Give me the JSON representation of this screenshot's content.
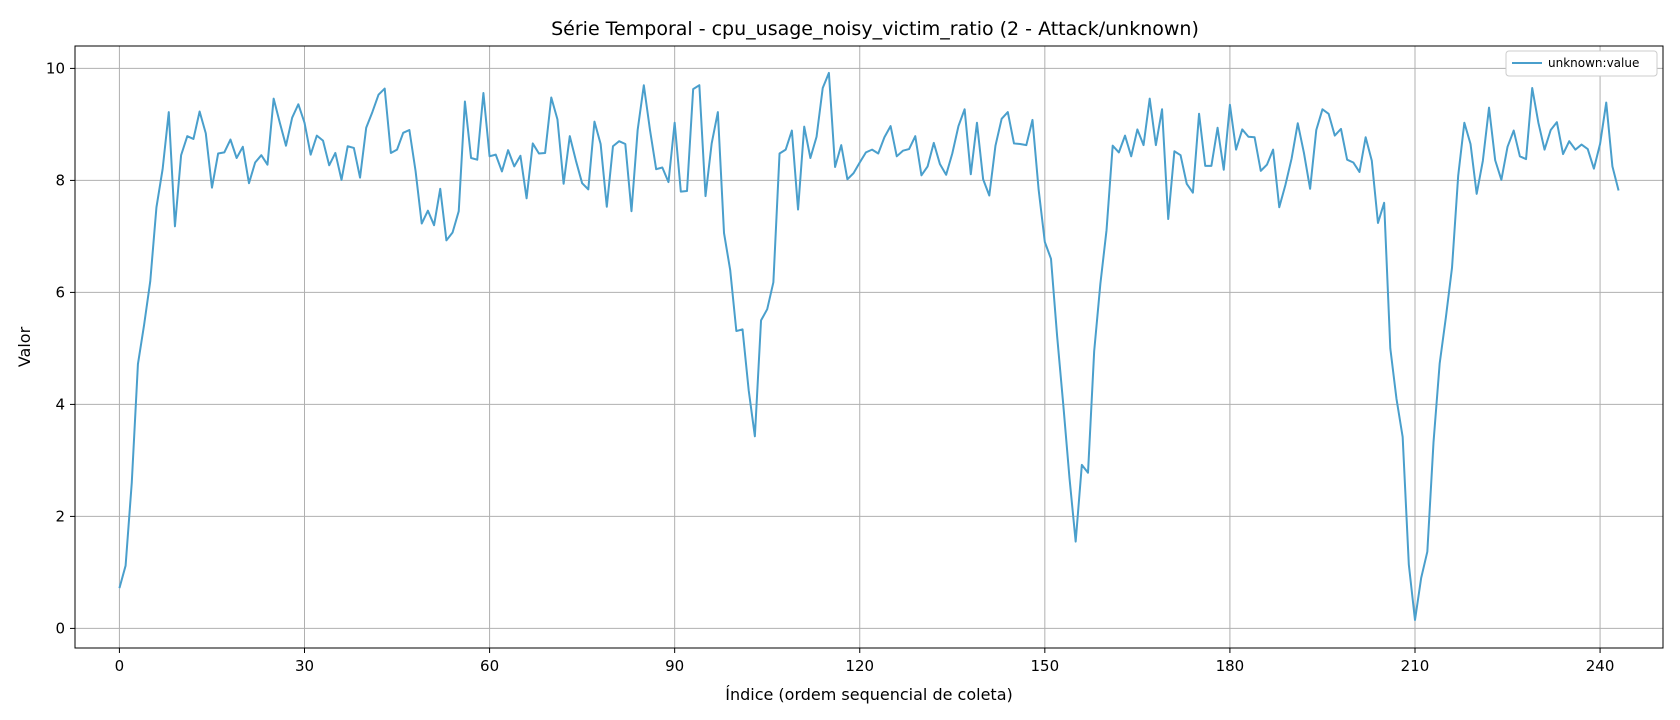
{
  "chart_data": {
    "type": "line",
    "title": "Série Temporal - cpu_usage_noisy_victim_ratio (2 - Attack/unknown)",
    "xlabel": "Índice (ordem sequencial de coleta)",
    "ylabel": "Valor",
    "xlim": [
      -7.2,
      250.2
    ],
    "ylim": [
      -0.35,
      10.4
    ],
    "xticks": [
      0,
      30,
      60,
      90,
      120,
      150,
      180,
      210,
      240
    ],
    "yticks": [
      0,
      2,
      4,
      6,
      8,
      10
    ],
    "grid": true,
    "legend_position": "top-right",
    "line_color": "#4a9fcc",
    "series": [
      {
        "name": "unknown:value",
        "x_start": 0,
        "values": [
          0.72,
          1.12,
          2.6,
          4.72,
          5.42,
          6.2,
          7.52,
          8.2,
          9.22,
          7.18,
          8.45,
          8.79,
          8.74,
          9.23,
          8.84,
          7.87,
          8.48,
          8.5,
          8.73,
          8.4,
          8.6,
          7.95,
          8.32,
          8.45,
          8.28,
          9.46,
          9.03,
          8.62,
          9.12,
          9.36,
          9.03,
          8.46,
          8.8,
          8.71,
          8.27,
          8.49,
          8.01,
          8.61,
          8.58,
          8.05,
          8.94,
          9.22,
          9.53,
          9.64,
          8.49,
          8.55,
          8.85,
          8.9,
          8.17,
          7.23,
          7.46,
          7.2,
          7.85,
          6.93,
          7.07,
          7.45,
          9.41,
          8.4,
          8.37,
          9.56,
          8.43,
          8.46,
          8.16,
          8.54,
          8.25,
          8.44,
          7.68,
          8.66,
          8.48,
          8.49,
          9.48,
          9.09,
          7.94,
          8.79,
          8.35,
          7.95,
          7.84,
          9.05,
          8.65,
          7.53,
          8.61,
          8.7,
          8.65,
          7.45,
          8.9,
          9.7,
          8.9,
          8.2,
          8.23,
          7.97,
          9.03,
          7.8,
          7.81,
          9.63,
          9.7,
          7.72,
          8.66,
          9.22,
          7.06,
          6.4,
          5.31,
          5.34,
          4.25,
          3.43,
          5.5,
          5.7,
          6.18,
          8.48,
          8.55,
          8.89,
          7.48,
          8.96,
          8.4,
          8.78,
          9.65,
          9.92,
          8.24,
          8.63,
          8.02,
          8.13,
          8.32,
          8.5,
          8.55,
          8.48,
          8.77,
          8.97,
          8.43,
          8.53,
          8.56,
          8.79,
          8.09,
          8.25,
          8.67,
          8.29,
          8.1,
          8.48,
          8.97,
          9.27,
          8.11,
          9.03,
          8.02,
          7.73,
          8.62,
          9.1,
          9.22,
          8.66,
          8.65,
          8.63,
          9.08,
          7.83,
          6.9,
          6.6,
          5.21,
          3.98,
          2.68,
          1.55,
          2.92,
          2.78,
          4.95,
          6.15,
          7.11,
          8.62,
          8.5,
          8.8,
          8.43,
          8.91,
          8.63,
          9.46,
          8.63,
          9.27,
          7.31,
          8.52,
          8.45,
          7.94,
          7.78,
          9.19,
          8.26,
          8.26,
          8.94,
          8.19,
          9.35,
          8.55,
          8.91,
          8.78,
          8.77,
          8.17,
          8.28,
          8.55,
          7.52,
          7.92,
          8.39,
          9.02,
          8.49,
          7.85,
          8.9,
          9.27,
          9.19,
          8.8,
          8.92,
          8.37,
          8.32,
          8.15,
          8.77,
          8.35,
          7.24,
          7.6,
          5.0,
          4.1,
          3.42,
          1.14,
          0.15,
          0.9,
          1.37,
          3.32,
          4.73,
          5.55,
          6.44,
          8.08,
          9.03,
          8.65,
          7.76,
          8.35,
          9.3,
          8.36,
          8.01,
          8.6,
          8.89,
          8.43,
          8.38,
          9.65,
          9.03,
          8.55,
          8.9,
          9.04,
          8.47,
          8.7,
          8.55,
          8.64,
          8.56,
          8.21,
          8.65,
          9.39,
          8.25,
          7.82
        ]
      }
    ]
  }
}
